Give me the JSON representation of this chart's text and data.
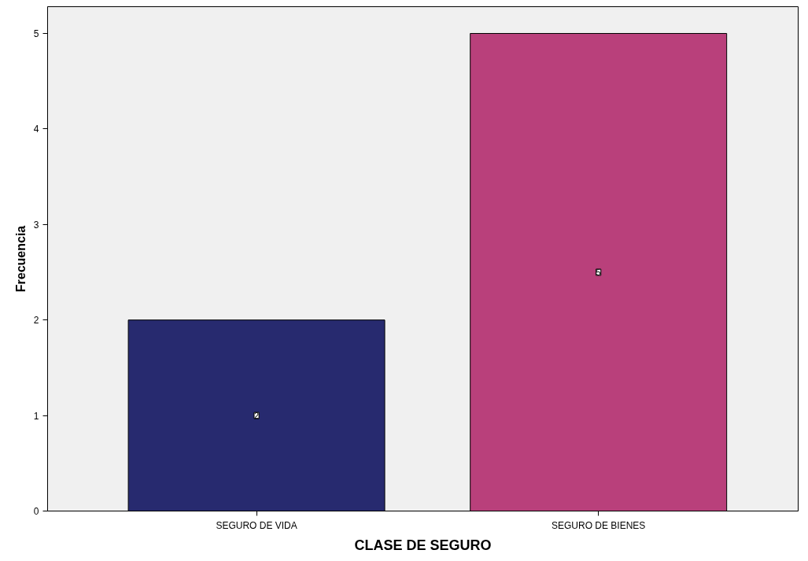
{
  "chart_data": {
    "type": "bar",
    "xlabel": "CLASE DE SEGURO",
    "ylabel": "Frecuencia",
    "categories": [
      "SEGURO DE VIDA",
      "SEGURO DE BIENES"
    ],
    "values": [
      2,
      5
    ],
    "colors": [
      "#272a6f",
      "#b9407b"
    ],
    "ylim": [
      0,
      5.28
    ],
    "yticks": [
      0,
      1,
      2,
      3,
      4,
      5
    ],
    "grid": false,
    "data_labels": true
  }
}
